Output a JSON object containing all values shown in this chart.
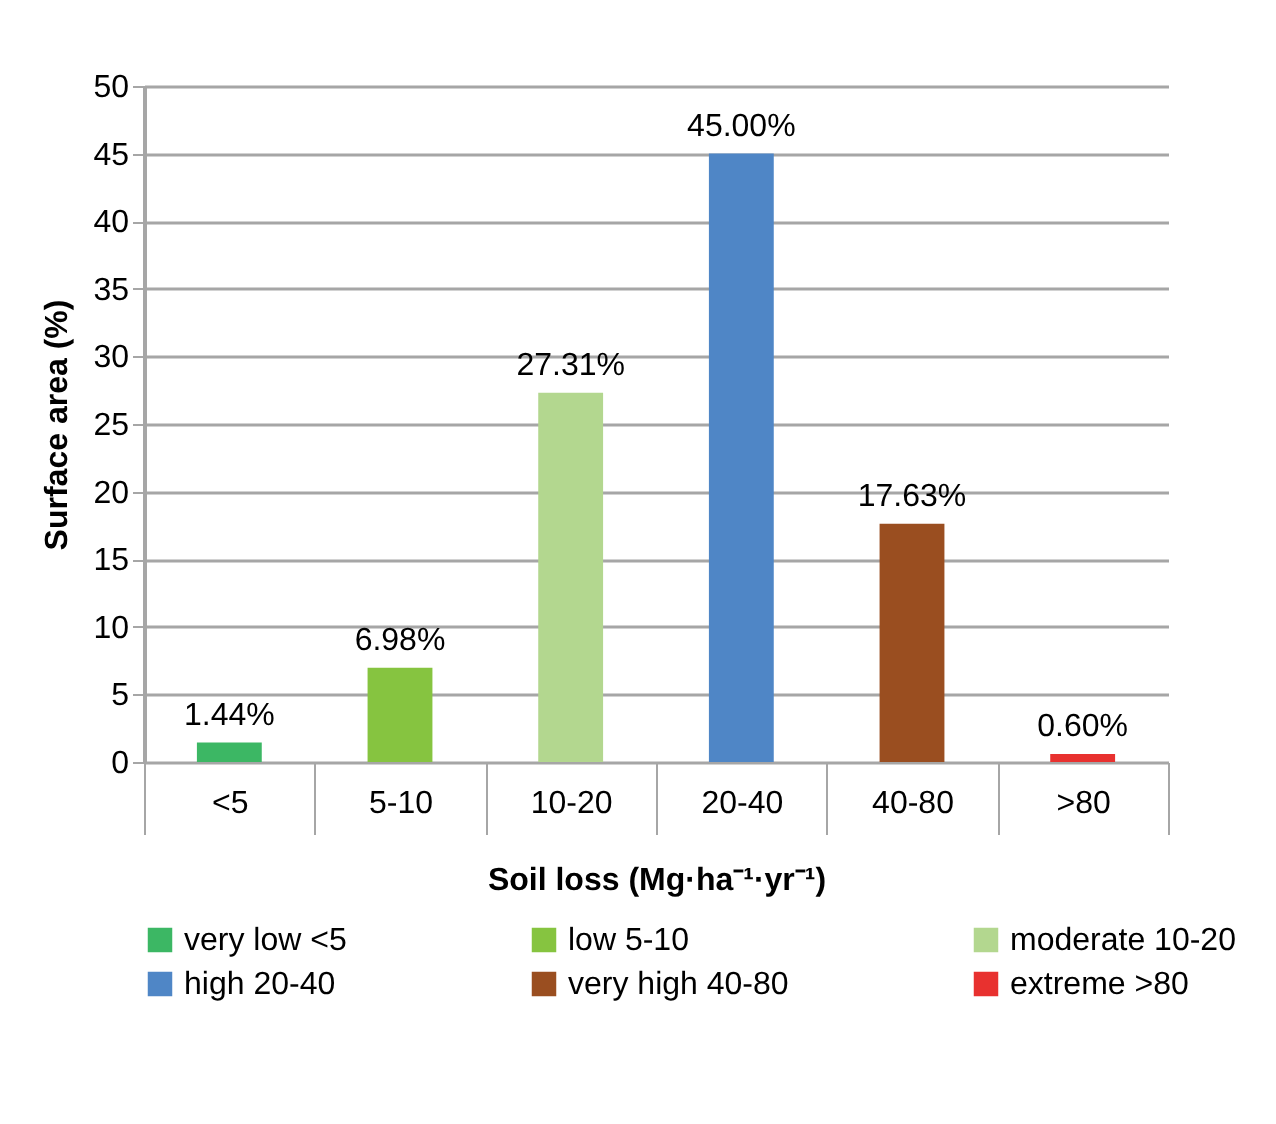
{
  "chart_data": {
    "type": "bar",
    "xlabel": "Soil loss (Mg·ha⁻¹·yr⁻¹)",
    "ylabel": "Surface area (%)",
    "categories": [
      "<5",
      "5-10",
      "10-20",
      "20-40",
      "40-80",
      ">80"
    ],
    "series": [
      {
        "name": "very low <5",
        "color": "#3cb764",
        "values": [
          1.44,
          null,
          null,
          null,
          null,
          null
        ],
        "value_labels": [
          "1.44%",
          null,
          null,
          null,
          null,
          null
        ]
      },
      {
        "name": "low 5-10",
        "color": "#86c440",
        "values": [
          null,
          6.98,
          null,
          null,
          null,
          null
        ],
        "value_labels": [
          null,
          "6.98%",
          null,
          null,
          null,
          null
        ]
      },
      {
        "name": "moderate 10-20",
        "color": "#b3d78f",
        "values": [
          null,
          null,
          27.31,
          null,
          null,
          null
        ],
        "value_labels": [
          null,
          null,
          "27.31%",
          null,
          null,
          null
        ]
      },
      {
        "name": "high 20-40",
        "color": "#4f86c6",
        "values": [
          null,
          null,
          null,
          45.0,
          null,
          null
        ],
        "value_labels": [
          null,
          null,
          null,
          "45.00%",
          null,
          null
        ]
      },
      {
        "name": "very high 40-80",
        "color": "#9a4e20",
        "values": [
          null,
          null,
          null,
          null,
          17.63,
          null
        ],
        "value_labels": [
          null,
          null,
          null,
          null,
          "17.63%",
          null
        ]
      },
      {
        "name": "extreme >80",
        "color": "#e8312f",
        "values": [
          null,
          null,
          null,
          null,
          null,
          0.6
        ],
        "value_labels": [
          null,
          null,
          null,
          null,
          null,
          "0.60%"
        ]
      }
    ],
    "ylim": [
      0,
      50
    ],
    "yticks": [
      0,
      5,
      10,
      15,
      20,
      25,
      30,
      35,
      40,
      45,
      50
    ],
    "grid": "y",
    "legend": "bottom"
  }
}
